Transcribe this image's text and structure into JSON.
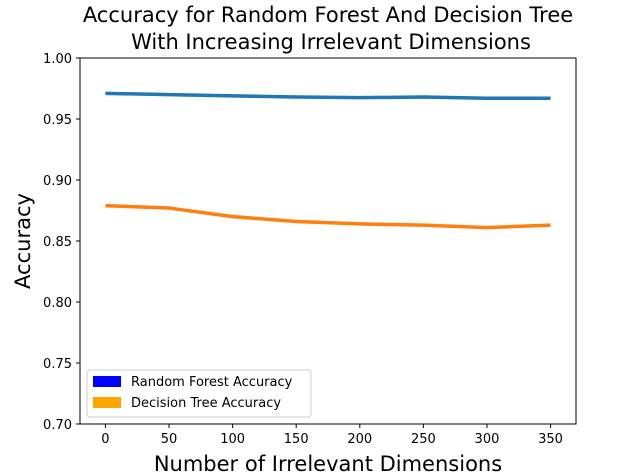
{
  "chart_data": {
    "type": "line",
    "title_lines": [
      "Accuracy for Random Forest And Decision Tree",
      "With Increasing Irrelevant Dimensions"
    ],
    "xlabel": "Number of Irrelevant Dimensions",
    "ylabel": "Accuracy",
    "xlim": [
      -20,
      370
    ],
    "ylim": [
      0.7,
      1.0
    ],
    "xticks": [
      0,
      50,
      100,
      150,
      200,
      250,
      300,
      350
    ],
    "xtick_labels": [
      "0",
      "50",
      "100",
      "150",
      "200",
      "250",
      "300",
      "350"
    ],
    "yticks": [
      0.7,
      0.75,
      0.8,
      0.85,
      0.9,
      0.95,
      1.0
    ],
    "ytick_labels": [
      "0.70",
      "0.75",
      "0.80",
      "0.85",
      "0.90",
      "0.95",
      "1.00"
    ],
    "grid": false,
    "legend_position": "lower-left",
    "x": [
      0,
      50,
      100,
      150,
      200,
      250,
      300,
      350
    ],
    "series": [
      {
        "name": "Random Forest Accuracy",
        "line_color": "#1f77b4",
        "legend_color": "#0000ff",
        "values": [
          0.971,
          0.97,
          0.969,
          0.968,
          0.9675,
          0.968,
          0.967,
          0.967
        ]
      },
      {
        "name": "Decision Tree Accuracy",
        "line_color": "#ff7f0e",
        "legend_color": "#ffa500",
        "values": [
          0.879,
          0.877,
          0.87,
          0.866,
          0.864,
          0.863,
          0.861,
          0.863
        ]
      }
    ]
  }
}
